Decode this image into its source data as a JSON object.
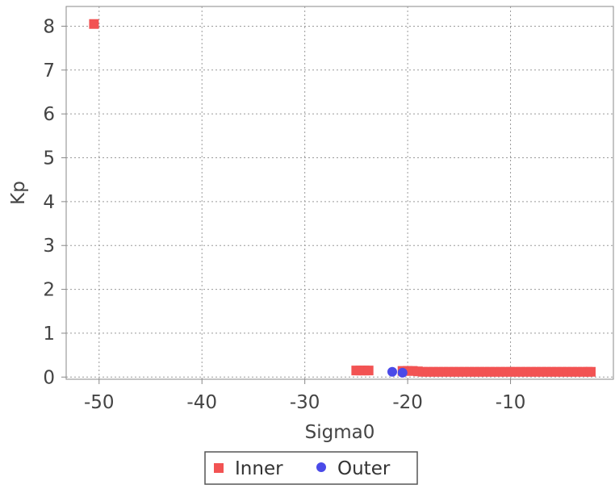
{
  "chart_data": {
    "type": "scatter",
    "title": "",
    "xlabel": "Sigma0",
    "ylabel": "Kp",
    "xlim": [
      -53.2,
      0
    ],
    "ylim": [
      -0.05,
      8.45
    ],
    "xticks": [
      -50,
      -40,
      -30,
      -20,
      -10
    ],
    "yticks": [
      0,
      1,
      2,
      3,
      4,
      5,
      6,
      7,
      8
    ],
    "grid": true,
    "legend": "bottom-center",
    "series": [
      {
        "name": "Inner",
        "marker": "square",
        "color": "#f25353",
        "points": [
          [
            -50.5,
            8.05
          ],
          [
            -25.0,
            0.15
          ],
          [
            -24.6,
            0.15
          ],
          [
            -24.2,
            0.15
          ],
          [
            -23.8,
            0.15
          ],
          [
            -20.5,
            0.14
          ],
          [
            -20.0,
            0.14
          ],
          [
            -19.5,
            0.14
          ],
          [
            -19.0,
            0.13
          ],
          [
            -18.5,
            0.12
          ],
          [
            -18.0,
            0.12
          ],
          [
            -17.5,
            0.12
          ],
          [
            -17.0,
            0.12
          ],
          [
            -16.5,
            0.12
          ],
          [
            -16.0,
            0.12
          ],
          [
            -15.5,
            0.12
          ],
          [
            -15.0,
            0.12
          ],
          [
            -14.5,
            0.12
          ],
          [
            -14.0,
            0.12
          ],
          [
            -13.5,
            0.12
          ],
          [
            -13.0,
            0.12
          ],
          [
            -12.5,
            0.12
          ],
          [
            -12.0,
            0.12
          ],
          [
            -11.5,
            0.12
          ],
          [
            -11.0,
            0.12
          ],
          [
            -10.5,
            0.12
          ],
          [
            -10.0,
            0.12
          ],
          [
            -9.5,
            0.12
          ],
          [
            -9.0,
            0.12
          ],
          [
            -8.5,
            0.12
          ],
          [
            -8.0,
            0.12
          ],
          [
            -7.5,
            0.12
          ],
          [
            -7.0,
            0.12
          ],
          [
            -6.5,
            0.12
          ],
          [
            -6.0,
            0.12
          ],
          [
            -5.5,
            0.12
          ],
          [
            -5.0,
            0.12
          ],
          [
            -4.5,
            0.12
          ],
          [
            -4.0,
            0.12
          ],
          [
            -3.5,
            0.12
          ],
          [
            -3.0,
            0.12
          ],
          [
            -2.5,
            0.12
          ],
          [
            -2.2,
            0.12
          ]
        ]
      },
      {
        "name": "Outer",
        "marker": "circle",
        "color": "#4a4ae8",
        "points": [
          [
            -21.5,
            0.12
          ],
          [
            -20.5,
            0.1
          ]
        ]
      }
    ]
  }
}
